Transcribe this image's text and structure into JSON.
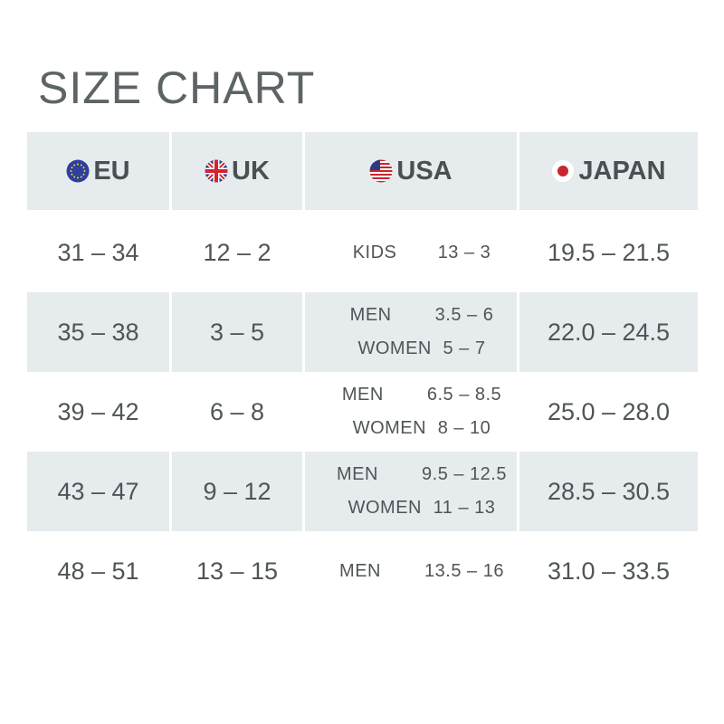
{
  "title": "SIZE CHART",
  "columns": [
    {
      "label": "EU",
      "icon": "eu-flag-icon"
    },
    {
      "label": "UK",
      "icon": "uk-flag-icon"
    },
    {
      "label": "USA",
      "icon": "usa-flag-icon"
    },
    {
      "label": "JAPAN",
      "icon": "japan-flag-icon"
    }
  ],
  "rows": [
    {
      "eu": "31 – 34",
      "uk": "12 – 2",
      "usa": [
        {
          "group": "KIDS",
          "value": "13 – 3"
        }
      ],
      "japan": "19.5 – 21.5"
    },
    {
      "eu": "35 – 38",
      "uk": "3 – 5",
      "usa": [
        {
          "group": "MEN",
          "value": "3.5 – 6"
        },
        {
          "group": "WOMEN",
          "value": "5 – 7"
        }
      ],
      "japan": "22.0 – 24.5"
    },
    {
      "eu": "39 – 42",
      "uk": "6 – 8",
      "usa": [
        {
          "group": "MEN",
          "value": "6.5 – 8.5"
        },
        {
          "group": "WOMEN",
          "value": "8 – 10"
        }
      ],
      "japan": "25.0 – 28.0"
    },
    {
      "eu": "43 – 47",
      "uk": "9 – 12",
      "usa": [
        {
          "group": "MEN",
          "value": "9.5 – 12.5"
        },
        {
          "group": "WOMEN",
          "value": "11 – 13"
        }
      ],
      "japan": "28.5 – 30.5"
    },
    {
      "eu": "48 – 51",
      "uk": "13 – 15",
      "usa": [
        {
          "group": "MEN",
          "value": "13.5 – 16"
        }
      ],
      "japan": "31.0 – 33.5"
    }
  ],
  "colors": {
    "row_shade": "#e6ebee",
    "text": "#4f5557"
  }
}
